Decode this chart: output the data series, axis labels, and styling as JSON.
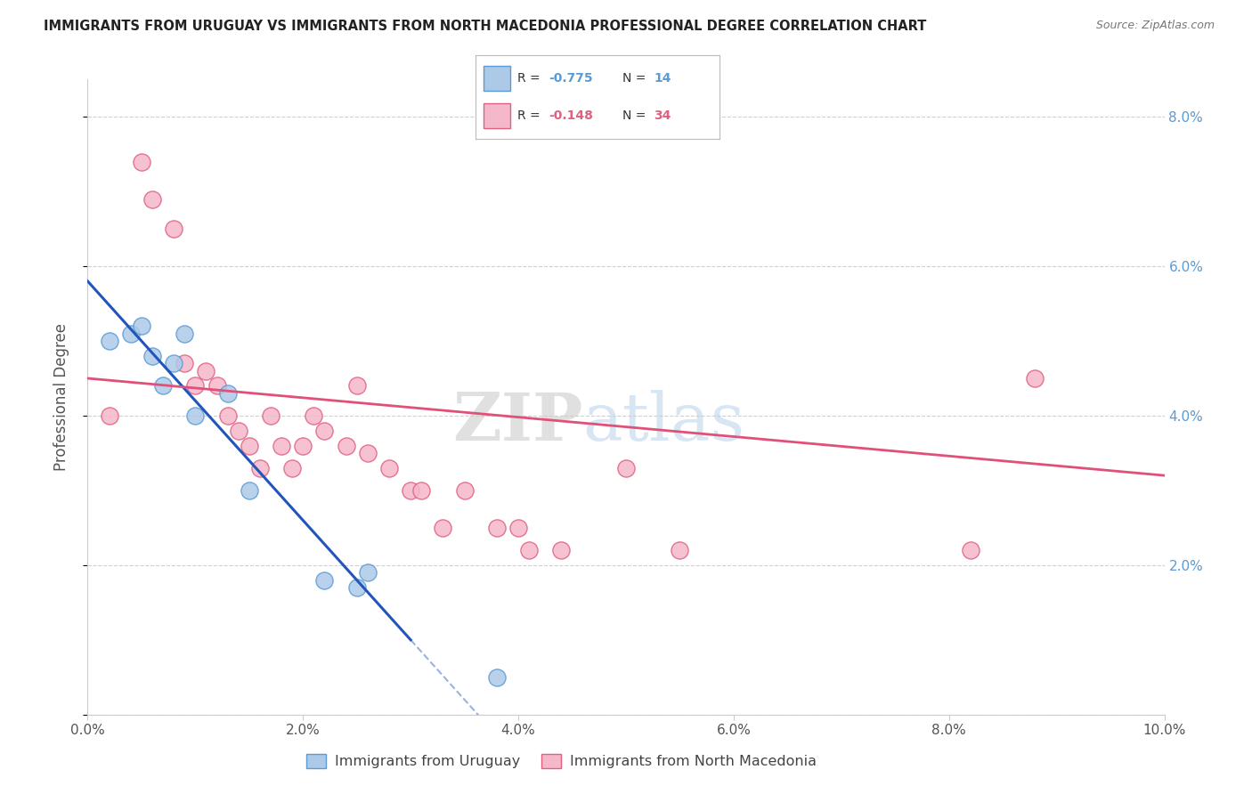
{
  "title": "IMMIGRANTS FROM URUGUAY VS IMMIGRANTS FROM NORTH MACEDONIA PROFESSIONAL DEGREE CORRELATION CHART",
  "source": "Source: ZipAtlas.com",
  "ylabel": "Professional Degree",
  "xlim": [
    0,
    0.1
  ],
  "ylim": [
    0,
    0.085
  ],
  "xticks": [
    0.0,
    0.02,
    0.04,
    0.06,
    0.08,
    0.1
  ],
  "yticks": [
    0.0,
    0.02,
    0.04,
    0.06,
    0.08
  ],
  "xtick_labels": [
    "0.0%",
    "2.0%",
    "4.0%",
    "6.0%",
    "8.0%",
    "10.0%"
  ],
  "ytick_labels_right": [
    "",
    "2.0%",
    "4.0%",
    "6.0%",
    "8.0%"
  ],
  "uruguay_color": "#adc9e8",
  "uruguay_edge_color": "#5b9bd5",
  "macedonia_color": "#f5b8ca",
  "macedonia_edge_color": "#e06080",
  "line_uruguay_color": "#2255bb",
  "line_macedonia_color": "#e05078",
  "watermark_zip": "ZIP",
  "watermark_atlas": "atlas",
  "background_color": "#ffffff",
  "grid_color": "#d0d0d0",
  "uruguay_x": [
    0.002,
    0.004,
    0.005,
    0.006,
    0.007,
    0.008,
    0.009,
    0.01,
    0.013,
    0.015,
    0.022,
    0.025,
    0.026,
    0.038
  ],
  "uruguay_y": [
    0.05,
    0.051,
    0.052,
    0.048,
    0.044,
    0.047,
    0.051,
    0.04,
    0.043,
    0.03,
    0.018,
    0.017,
    0.019,
    0.005
  ],
  "macedonia_x": [
    0.002,
    0.005,
    0.006,
    0.008,
    0.009,
    0.01,
    0.011,
    0.012,
    0.013,
    0.014,
    0.015,
    0.016,
    0.017,
    0.018,
    0.019,
    0.02,
    0.021,
    0.022,
    0.024,
    0.025,
    0.026,
    0.028,
    0.03,
    0.031,
    0.033,
    0.035,
    0.038,
    0.04,
    0.041,
    0.044,
    0.05,
    0.055,
    0.082,
    0.088
  ],
  "macedonia_y": [
    0.04,
    0.074,
    0.069,
    0.065,
    0.047,
    0.044,
    0.046,
    0.044,
    0.04,
    0.038,
    0.036,
    0.033,
    0.04,
    0.036,
    0.033,
    0.036,
    0.04,
    0.038,
    0.036,
    0.044,
    0.035,
    0.033,
    0.03,
    0.03,
    0.025,
    0.03,
    0.025,
    0.025,
    0.022,
    0.022,
    0.033,
    0.022,
    0.022,
    0.045
  ],
  "line_uruguay_x_start": 0.0,
  "line_uruguay_x_solid_end": 0.03,
  "line_uruguay_x_dash_end": 0.06,
  "line_macedonia_x_start": 0.0,
  "line_macedonia_x_end": 0.1,
  "line_uruguay_y_start": 0.058,
  "line_uruguay_y_at_solid_end": 0.01,
  "line_macedonia_y_start": 0.045,
  "line_macedonia_y_end": 0.032
}
